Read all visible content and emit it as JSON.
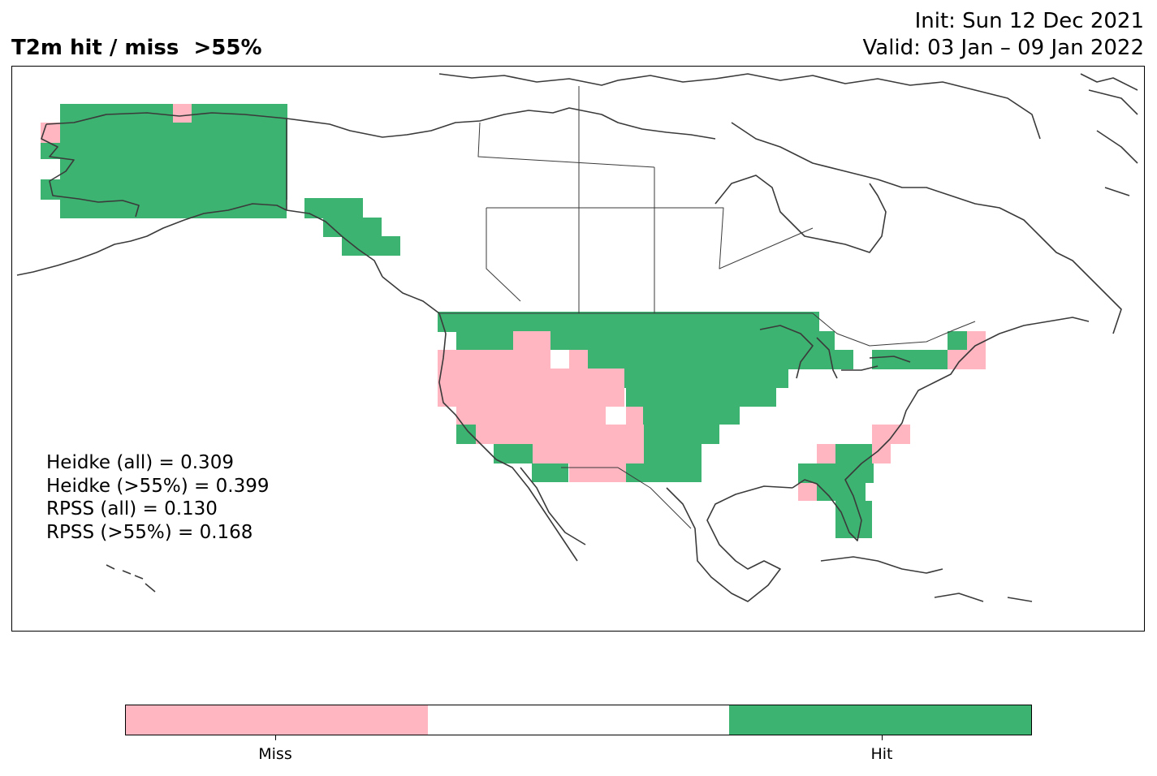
{
  "title": {
    "left": "T2m hit / miss  >55%",
    "init": "Init: Sun 12 Dec 2021",
    "valid": "Valid: 03 Jan – 09 Jan 2022"
  },
  "colors": {
    "miss": "#ffb6c1",
    "neutral": "#ffffff",
    "hit": "#3cb371",
    "coast": "#3a3a3a"
  },
  "scores": [
    "Heidke (all) = 0.309",
    "Heidke (>55%) = 0.399",
    "RPSS (all) = 0.130",
    "RPSS (>55%) = 0.168"
  ],
  "legend": {
    "segments": [
      "miss",
      "neutral",
      "hit"
    ],
    "labels": [
      "Miss",
      "Hit"
    ]
  }
}
